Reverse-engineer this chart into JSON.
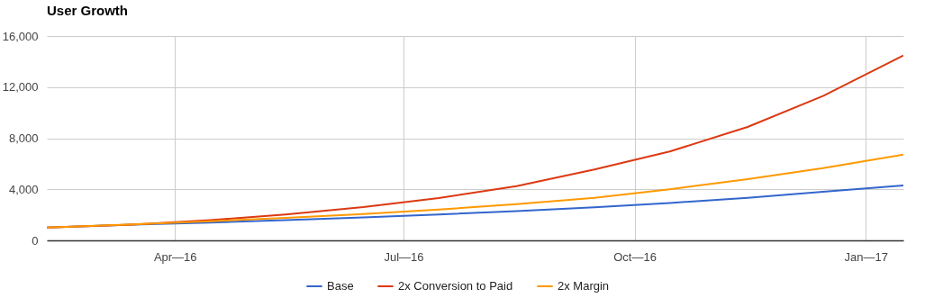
{
  "chart_data": {
    "type": "line",
    "title": "User Growth",
    "x": [
      "2016-02-10",
      "2016-03-15",
      "2016-04-15",
      "2016-05-15",
      "2016-06-15",
      "2016-07-15",
      "2016-08-15",
      "2016-09-15",
      "2016-10-15",
      "2016-11-15",
      "2016-12-15",
      "2017-01-16"
    ],
    "series": [
      {
        "name": "Base",
        "color": "#3366cc",
        "values": [
          1000,
          1240,
          1400,
          1590,
          1800,
          2030,
          2290,
          2590,
          2930,
          3330,
          3800,
          4300
        ]
      },
      {
        "name": "2x Conversion to Paid",
        "color": "#dc3912",
        "values": [
          1000,
          1240,
          1590,
          2030,
          2600,
          3320,
          4250,
          5550,
          6960,
          8880,
          11300,
          14470
        ]
      },
      {
        "name": "2x Margin",
        "color": "#ff9900",
        "values": [
          1000,
          1250,
          1500,
          1760,
          2060,
          2410,
          2830,
          3330,
          4000,
          4800,
          5650,
          6720
        ]
      }
    ],
    "xlim": [
      "2016-02-10",
      "2017-01-16"
    ],
    "xticks": [
      {
        "value": "2016-04-01",
        "label": "Apr—16"
      },
      {
        "value": "2016-07-01",
        "label": "Jul—16"
      },
      {
        "value": "2016-10-01",
        "label": "Oct—16"
      },
      {
        "value": "2017-01-01",
        "label": "Jan—17"
      }
    ],
    "ylim": [
      0,
      16000
    ],
    "yticks": [
      0,
      {
        "value": 4000,
        "label": "4,000"
      },
      {
        "value": 8000,
        "label": "8,000"
      },
      {
        "value": 12000,
        "label": "12,000"
      },
      {
        "value": 16000,
        "label": "16,000"
      }
    ],
    "grid": true,
    "legend": "bottom",
    "marker": "none",
    "line_style": "solid"
  }
}
